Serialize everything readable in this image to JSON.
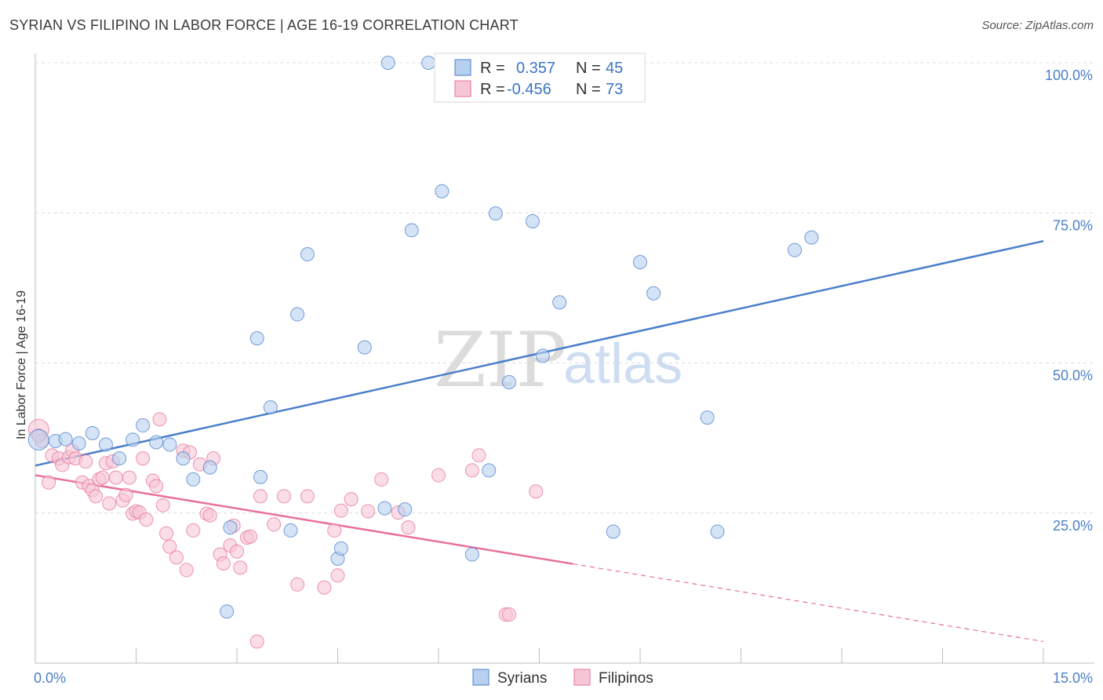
{
  "chart_data": {
    "type": "scatter",
    "title": "SYRIAN VS FILIPINO IN LABOR FORCE | AGE 16-19 CORRELATION CHART",
    "source": "Source: ZipAtlas.com",
    "xlabel": "",
    "ylabel": "In Labor Force | Age 16-19",
    "xlim": [
      0,
      15
    ],
    "ylim": [
      0,
      105
    ],
    "x_tick_labels": [
      {
        "value": 0,
        "label": "0.0%"
      },
      {
        "value": 15,
        "label": "15.0%"
      }
    ],
    "y_tick_labels": [
      {
        "value": 25,
        "label": "25.0%"
      },
      {
        "value": 50,
        "label": "50.0%"
      },
      {
        "value": 75,
        "label": "75.0%"
      },
      {
        "value": 100,
        "label": "100.0%"
      }
    ],
    "watermark": {
      "part1": "ZIP",
      "part2": "atlas"
    },
    "legend": {
      "r_label": "R =",
      "n_label": "N =",
      "entries": [
        {
          "name": "Syrians",
          "r": "0.357",
          "n": "45"
        },
        {
          "name": "Filipinos",
          "r": "-0.456",
          "n": "73"
        }
      ]
    },
    "series": [
      {
        "name": "Syrians",
        "color": "#4a7fc9",
        "fill": "#b8d0f0",
        "trend": {
          "x0": 0,
          "y0": 32.9,
          "x1": 15,
          "y1": 70.3,
          "solid_until": 15
        },
        "points": [
          [
            0.05,
            37.2
          ],
          [
            0.3,
            37.0
          ],
          [
            0.45,
            37.3
          ],
          [
            0.65,
            36.6
          ],
          [
            0.85,
            38.3
          ],
          [
            1.05,
            36.4
          ],
          [
            1.25,
            34.1
          ],
          [
            1.45,
            37.2
          ],
          [
            1.6,
            39.6
          ],
          [
            1.8,
            36.8
          ],
          [
            2.0,
            36.4
          ],
          [
            2.2,
            34.1
          ],
          [
            2.35,
            30.6
          ],
          [
            2.6,
            32.6
          ],
          [
            2.9,
            22.6
          ],
          [
            2.85,
            8.6
          ],
          [
            3.3,
            54.1
          ],
          [
            3.35,
            31.0
          ],
          [
            3.5,
            42.6
          ],
          [
            3.8,
            22.1
          ],
          [
            3.9,
            58.1
          ],
          [
            4.05,
            68.1
          ],
          [
            4.5,
            17.4
          ],
          [
            4.55,
            19.1
          ],
          [
            4.9,
            52.6
          ],
          [
            5.2,
            25.8
          ],
          [
            5.25,
            100.0
          ],
          [
            5.5,
            25.6
          ],
          [
            5.6,
            72.1
          ],
          [
            5.85,
            100.0
          ],
          [
            6.05,
            78.6
          ],
          [
            6.5,
            18.1
          ],
          [
            6.75,
            32.1
          ],
          [
            6.85,
            74.9
          ],
          [
            7.05,
            46.8
          ],
          [
            7.4,
            73.6
          ],
          [
            7.55,
            51.2
          ],
          [
            7.8,
            60.1
          ],
          [
            8.6,
            21.9
          ],
          [
            9.0,
            66.8
          ],
          [
            9.2,
            61.6
          ],
          [
            10.0,
            40.9
          ],
          [
            10.15,
            21.9
          ],
          [
            11.3,
            68.8
          ],
          [
            11.55,
            70.9
          ]
        ]
      },
      {
        "name": "Filipinos",
        "color": "#e8709a",
        "fill": "#f6c6d6",
        "trend": {
          "x0": 0,
          "y0": 31.3,
          "x1": 15,
          "y1": 3.6,
          "solid_until": 8.0
        },
        "points": [
          [
            0.05,
            38.9
          ],
          [
            0.1,
            37.0
          ],
          [
            0.2,
            30.1
          ],
          [
            0.25,
            34.6
          ],
          [
            0.35,
            34.1
          ],
          [
            0.4,
            33.0
          ],
          [
            0.5,
            34.3
          ],
          [
            0.55,
            35.4
          ],
          [
            0.6,
            34.1
          ],
          [
            0.7,
            30.1
          ],
          [
            0.75,
            33.6
          ],
          [
            0.8,
            29.5
          ],
          [
            0.85,
            28.8
          ],
          [
            0.9,
            27.8
          ],
          [
            0.95,
            30.6
          ],
          [
            1.0,
            30.9
          ],
          [
            1.05,
            33.3
          ],
          [
            1.1,
            26.6
          ],
          [
            1.15,
            33.6
          ],
          [
            1.2,
            30.9
          ],
          [
            1.3,
            27.1
          ],
          [
            1.35,
            28.0
          ],
          [
            1.4,
            30.9
          ],
          [
            1.45,
            24.9
          ],
          [
            1.5,
            25.3
          ],
          [
            1.55,
            25.1
          ],
          [
            1.6,
            34.1
          ],
          [
            1.65,
            23.9
          ],
          [
            1.75,
            30.4
          ],
          [
            1.8,
            29.5
          ],
          [
            1.85,
            40.6
          ],
          [
            1.9,
            26.3
          ],
          [
            1.95,
            21.6
          ],
          [
            2.0,
            19.4
          ],
          [
            2.1,
            17.6
          ],
          [
            2.2,
            35.4
          ],
          [
            2.25,
            15.5
          ],
          [
            2.3,
            35.1
          ],
          [
            2.35,
            22.1
          ],
          [
            2.45,
            33.1
          ],
          [
            2.55,
            24.9
          ],
          [
            2.6,
            24.6
          ],
          [
            2.65,
            34.1
          ],
          [
            2.75,
            18.1
          ],
          [
            2.8,
            16.6
          ],
          [
            2.9,
            19.6
          ],
          [
            2.95,
            22.9
          ],
          [
            3.0,
            18.6
          ],
          [
            3.05,
            15.9
          ],
          [
            3.15,
            20.9
          ],
          [
            3.2,
            21.1
          ],
          [
            3.3,
            3.6
          ],
          [
            3.35,
            27.8
          ],
          [
            3.55,
            23.1
          ],
          [
            3.7,
            27.8
          ],
          [
            3.9,
            13.1
          ],
          [
            4.05,
            27.8
          ],
          [
            4.3,
            12.6
          ],
          [
            4.45,
            22.1
          ],
          [
            4.5,
            14.6
          ],
          [
            4.55,
            25.4
          ],
          [
            4.7,
            27.3
          ],
          [
            4.95,
            25.3
          ],
          [
            5.15,
            30.6
          ],
          [
            5.4,
            25.1
          ],
          [
            5.55,
            22.6
          ],
          [
            6.0,
            31.3
          ],
          [
            6.5,
            32.1
          ],
          [
            6.6,
            34.6
          ],
          [
            7.0,
            8.1
          ],
          [
            7.05,
            8.1
          ],
          [
            7.45,
            28.6
          ],
          [
            0.05,
            37.9
          ]
        ]
      }
    ]
  }
}
